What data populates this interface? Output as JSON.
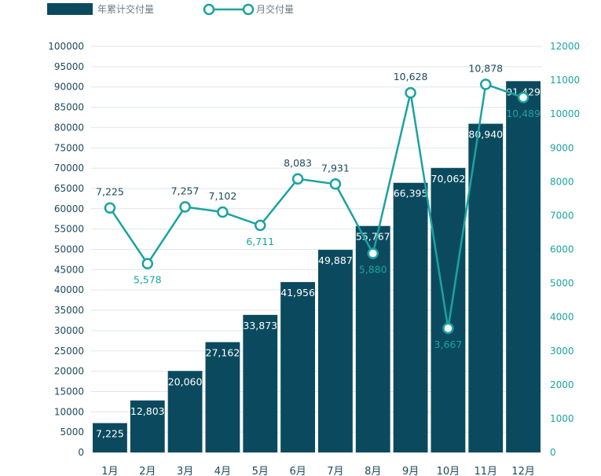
{
  "chart_data": {
    "type": "bar+line",
    "title": "",
    "legend": [
      {
        "name": "年累计交付量",
        "type": "bar",
        "color": "#0b4a5e"
      },
      {
        "name": "月交付量",
        "type": "line",
        "color": "#1aa3a0"
      }
    ],
    "legend_position": "top-left",
    "grid": true,
    "categories": [
      "1月",
      "2月",
      "3月",
      "4月",
      "5月",
      "6月",
      "7月",
      "8月",
      "9月",
      "10月",
      "11月",
      "12月"
    ],
    "series": [
      {
        "name": "年累计交付量",
        "axis": "left",
        "type": "bar",
        "color": "#0b4a5e",
        "values": [
          7225,
          12803,
          20060,
          27162,
          33873,
          41956,
          49887,
          55767,
          66395,
          70062,
          80940,
          91429
        ],
        "labels": [
          "7,225",
          "12,803",
          "20,060",
          "27,162",
          "33,873",
          "41,956",
          "49,887",
          "55,767",
          "66,395",
          "70,062",
          "80,940",
          "91,429"
        ]
      },
      {
        "name": "月交付量",
        "axis": "right",
        "type": "line",
        "color": "#1aa3a0",
        "values": [
          7225,
          5578,
          7257,
          7102,
          6711,
          8083,
          7931,
          5880,
          10628,
          3667,
          10878,
          10489
        ],
        "labels": [
          "7,225",
          "5,578",
          "7,257",
          "7,102",
          "6,711",
          "8,083",
          "7,931",
          "5,880",
          "10,628",
          "3,667",
          "10,878",
          "10,489"
        ]
      }
    ],
    "y_left": {
      "ylim": [
        0,
        100000
      ],
      "ticks": [
        "0",
        "5000",
        "10000",
        "15000",
        "20000",
        "25000",
        "30000",
        "35000",
        "40000",
        "45000",
        "50000",
        "55000",
        "60000",
        "65000",
        "70000",
        "75000",
        "80000",
        "85000",
        "90000",
        "95000",
        "100000"
      ]
    },
    "y_right": {
      "ylim": [
        0,
        12000
      ],
      "ticks": [
        "0",
        "1000",
        "2000",
        "3000",
        "4000",
        "5000",
        "6000",
        "7000",
        "8000",
        "9000",
        "10000",
        "11000",
        "12000"
      ]
    }
  }
}
